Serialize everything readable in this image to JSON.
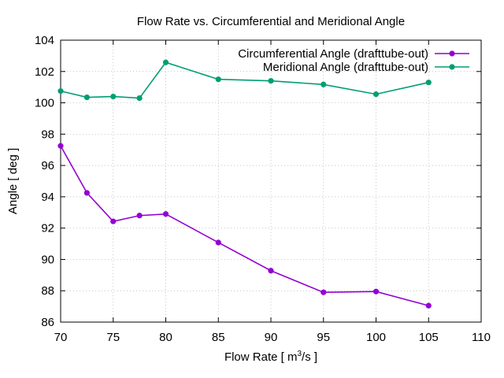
{
  "chart_data": {
    "type": "line",
    "title": "Flow Rate vs. Circumferential and Meridional Angle",
    "xlabel": "Flow Rate [ m",
    "xlabel_sup": "3",
    "xlabel_suffix": "/s ]",
    "ylabel": "Angle [ deg ]",
    "xlim": [
      70,
      110
    ],
    "ylim": [
      86,
      104
    ],
    "xticks": [
      70,
      75,
      80,
      85,
      90,
      95,
      100,
      105,
      110
    ],
    "yticks": [
      86,
      88,
      90,
      92,
      94,
      96,
      98,
      100,
      102,
      104
    ],
    "grid": true,
    "legend_position": "top-right",
    "x": [
      70,
      72.5,
      75,
      77.5,
      80,
      85,
      90,
      95,
      100,
      105
    ],
    "series": [
      {
        "name": "Circumferential Angle (drafttube-out)",
        "color": "#9400d3",
        "values": [
          97.25,
          94.25,
          92.43,
          92.8,
          92.9,
          91.08,
          89.28,
          87.9,
          87.95,
          87.05
        ]
      },
      {
        "name": "Meridional Angle (drafttube-out)",
        "color": "#009e73",
        "values": [
          100.75,
          100.35,
          100.4,
          100.3,
          102.58,
          101.5,
          101.4,
          101.17,
          100.55,
          101.3
        ]
      }
    ]
  }
}
